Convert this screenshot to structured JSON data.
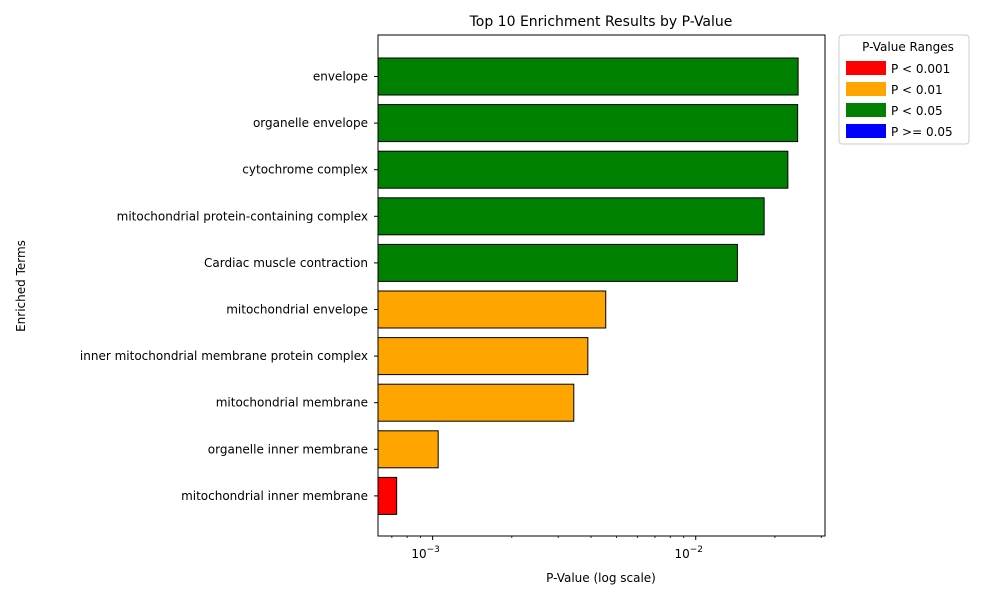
{
  "chart_data": {
    "type": "bar",
    "orientation": "horizontal",
    "title": "Top 10 Enrichment Results by P-Value",
    "xlabel": "P-Value (log scale)",
    "ylabel": "Enriched Terms",
    "xscale": "log",
    "xlim": [
      0.00062,
      0.031
    ],
    "x_ticks": [
      {
        "value": 0.001,
        "base": "10",
        "exp": "−3"
      },
      {
        "value": 0.01,
        "base": "10",
        "exp": "−2"
      }
    ],
    "categories": [
      "envelope",
      "organelle envelope",
      "cytochrome complex",
      "mitochondrial protein-containing complex",
      "Cardiac muscle contraction",
      "mitochondrial envelope",
      "inner mitochondrial membrane protein complex",
      "mitochondrial membrane",
      "organelle inner membrane",
      "mitochondrial inner membrane"
    ],
    "values": [
      0.0245,
      0.0244,
      0.0224,
      0.0182,
      0.0144,
      0.00455,
      0.00389,
      0.00344,
      0.00105,
      0.00073
    ],
    "bar_colors": [
      "#008000",
      "#008000",
      "#008000",
      "#008000",
      "#008000",
      "#FFA500",
      "#FFA500",
      "#FFA500",
      "#FFA500",
      "#FF0000"
    ],
    "legend": {
      "title": "P-Value Ranges",
      "placement": "outside-top-right",
      "entries": [
        {
          "label": "P < 0.001",
          "color": "#FF0000"
        },
        {
          "label": "P < 0.01",
          "color": "#FFA500"
        },
        {
          "label": "P < 0.05",
          "color": "#008000"
        },
        {
          "label": "P >= 0.05",
          "color": "#0000FF"
        }
      ]
    },
    "grid": false
  }
}
